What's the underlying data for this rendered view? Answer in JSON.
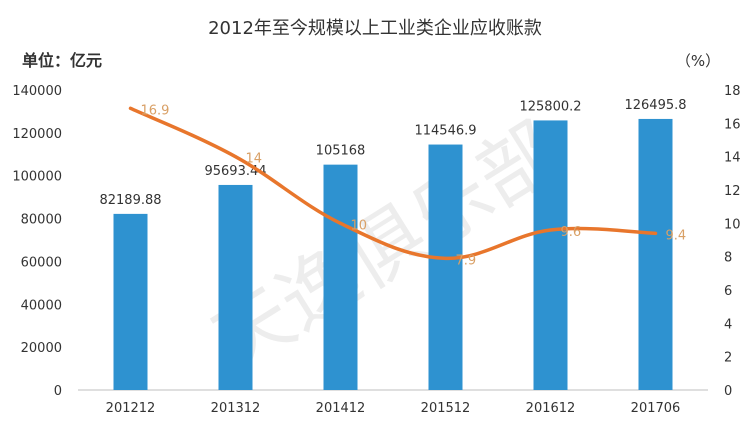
{
  "chart_data": {
    "type": "bar+line",
    "title": "2012年至今规模以上工业类企业应收账款",
    "left_unit_label": "单位：亿元",
    "right_unit_label": "（%）",
    "categories": [
      "201212",
      "201312",
      "201412",
      "201512",
      "201612",
      "201706"
    ],
    "series": [
      {
        "type": "bar",
        "axis": "left",
        "values": [
          82189.88,
          95693.44,
          105168,
          114546.9,
          125800.2,
          126495.8
        ],
        "labels": [
          "82189.88",
          "95693.44",
          "105168",
          "114546.9",
          "125800.2",
          "126495.8"
        ],
        "color": "#2E92D0"
      },
      {
        "type": "line",
        "axis": "right",
        "values": [
          16.9,
          14,
          10,
          7.9,
          9.6,
          9.4
        ],
        "labels": [
          "16.9",
          "14",
          "10",
          "7.9",
          "9.6",
          "9.4"
        ],
        "color": "#E8762C",
        "label_color": "#D9A066"
      }
    ],
    "y_left": {
      "min": 0,
      "max": 140000,
      "ticks": [
        "0",
        "20000",
        "40000",
        "60000",
        "80000",
        "100000",
        "120000",
        "140000"
      ]
    },
    "y_right": {
      "min": 0,
      "max": 18,
      "ticks": [
        "0",
        "2",
        "4",
        "6",
        "8",
        "10",
        "12",
        "14",
        "16",
        "18"
      ]
    },
    "grid": false,
    "legend": "none",
    "watermark": "天逸俱乐部"
  }
}
